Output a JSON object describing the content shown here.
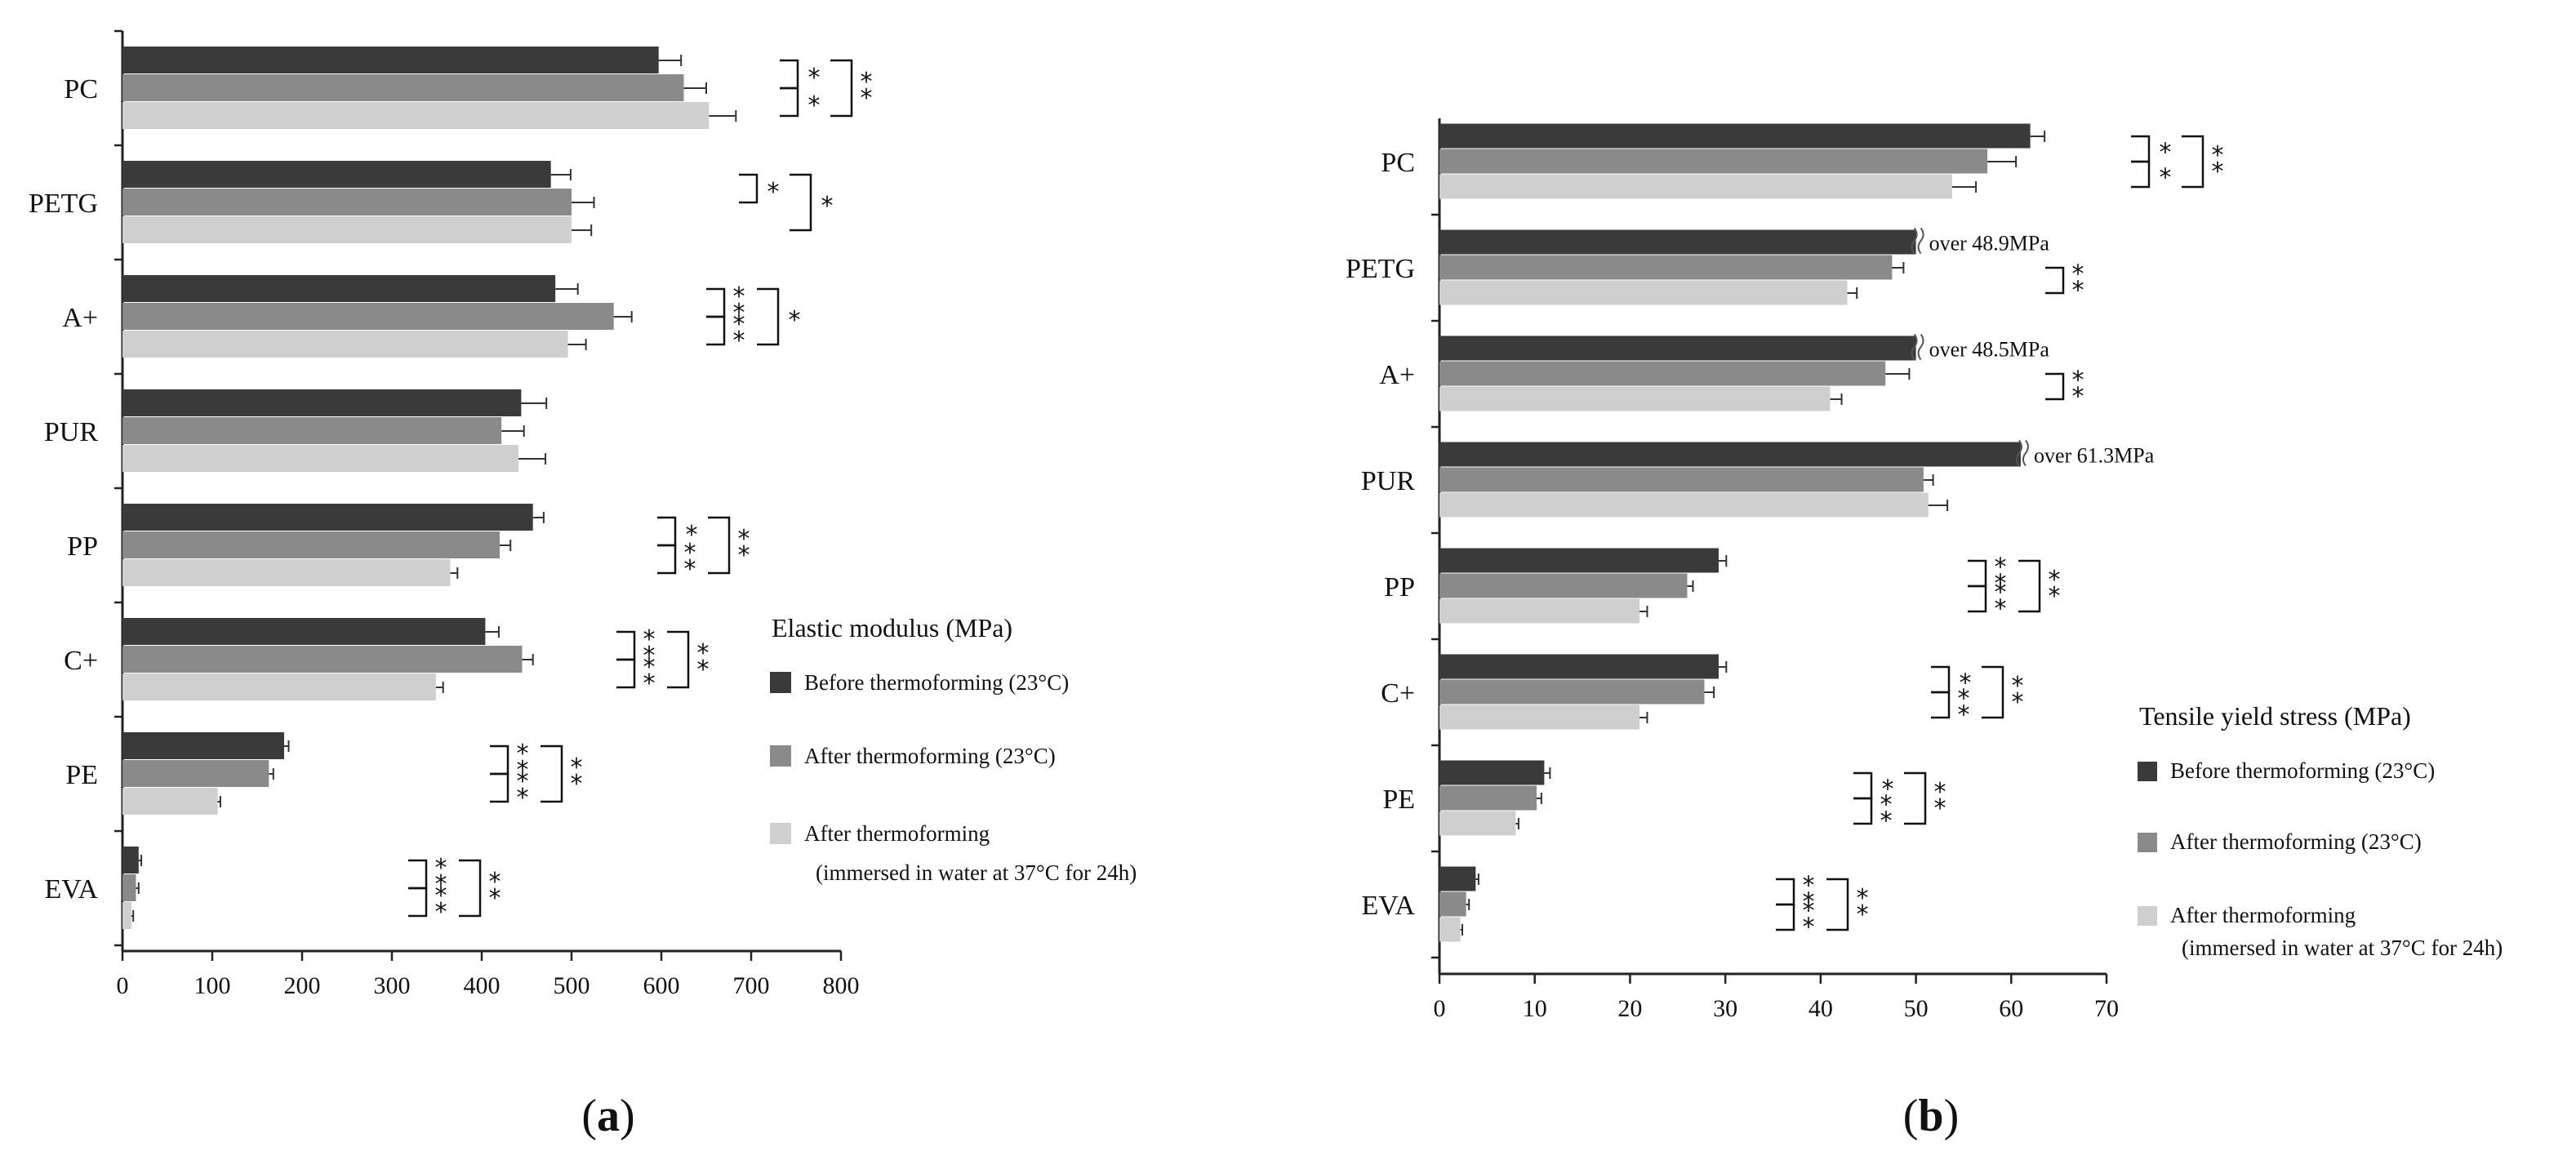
{
  "colors": {
    "before": "#3a3a3a",
    "after": "#8a8a8a",
    "water": "#cfcfcf",
    "axis": "#222222"
  },
  "legend_entries": [
    "Before thermoforming (23°C)",
    "After thermoforming (23°C)",
    "After thermoforming",
    "(immersed in water at 37°C for 24h)"
  ],
  "chart_data": [
    {
      "panel_label": "a",
      "type": "bar",
      "orientation": "horizontal",
      "legend_title": "Elastic modulus (MPa)",
      "categories": [
        "PC",
        "PETG",
        "A+",
        "PUR",
        "PP",
        "C+",
        "PE",
        "EVA"
      ],
      "xlim": [
        0,
        800
      ],
      "xticks": [
        "0",
        "100",
        "200",
        "300",
        "400",
        "500",
        "600",
        "700",
        "800"
      ],
      "series": [
        {
          "name": "Before thermoforming (23°C)",
          "values": [
            597,
            477,
            482,
            444,
            457,
            404,
            180,
            18
          ],
          "errors": [
            25,
            22,
            25,
            28,
            12,
            15,
            5,
            3
          ]
        },
        {
          "name": "After thermoforming (23°C)",
          "values": [
            625,
            500,
            547,
            422,
            420,
            445,
            163,
            15
          ],
          "errors": [
            25,
            25,
            20,
            25,
            12,
            12,
            5,
            3
          ]
        },
        {
          "name": "After thermoforming (immersed in water at 37°C for 24h)",
          "values": [
            653,
            500,
            496,
            441,
            365,
            349,
            106,
            10
          ],
          "errors": [
            30,
            22,
            20,
            30,
            8,
            8,
            3,
            2
          ]
        }
      ],
      "annotations": [],
      "significance": [
        {
          "category": "PC",
          "marks": [
            "*",
            "*",
            "**"
          ]
        },
        {
          "category": "PETG",
          "marks": [
            "*",
            "*"
          ]
        },
        {
          "category": "A+",
          "marks": [
            "**",
            "**",
            "*"
          ]
        },
        {
          "category": "PP",
          "marks": [
            "*",
            "**",
            "**"
          ]
        },
        {
          "category": "C+",
          "marks": [
            "**",
            "**",
            "**"
          ]
        },
        {
          "category": "PE",
          "marks": [
            "**",
            "**",
            "**"
          ]
        },
        {
          "category": "EVA",
          "marks": [
            "**",
            "**",
            "**"
          ]
        }
      ]
    },
    {
      "panel_label": "b",
      "type": "bar",
      "orientation": "horizontal",
      "legend_title": "Tensile yield stress (MPa)",
      "categories": [
        "PC",
        "PETG",
        "A+",
        "PUR",
        "PP",
        "C+",
        "PE",
        "EVA"
      ],
      "xlim": [
        0,
        70
      ],
      "xticks": [
        "0",
        "10",
        "20",
        "30",
        "40",
        "50",
        "60",
        "70"
      ],
      "series": [
        {
          "name": "Before thermoforming (23°C)",
          "values": [
            62,
            50,
            50,
            61,
            29.3,
            29.3,
            11,
            3.8
          ],
          "errors": [
            1.5,
            0,
            0,
            0,
            0.8,
            0.8,
            0.6,
            0.3
          ]
        },
        {
          "name": "After thermoforming (23°C)",
          "values": [
            57.5,
            47.5,
            46.8,
            50.8,
            26,
            27.8,
            10.2,
            2.8
          ],
          "errors": [
            3,
            1.2,
            2.5,
            1,
            0.6,
            1,
            0.5,
            0.3
          ]
        },
        {
          "name": "After thermoforming (immersed in water at 37°C for 24h)",
          "values": [
            53.8,
            42.8,
            41,
            51.3,
            21,
            21,
            8,
            2.2
          ],
          "errors": [
            2.5,
            1,
            1.2,
            2,
            0.8,
            0.8,
            0.3,
            0.2
          ]
        }
      ],
      "annotations": [
        {
          "category": "PETG",
          "text": "over 48.9MPa"
        },
        {
          "category": "A+",
          "text": "over 48.5MPa"
        },
        {
          "category": "PUR",
          "text": "over 61.3MPa"
        }
      ],
      "significance": [
        {
          "category": "PC",
          "marks": [
            "*",
            "*",
            "**"
          ]
        },
        {
          "category": "PETG",
          "marks": [
            "**"
          ]
        },
        {
          "category": "A+",
          "marks": [
            "**"
          ]
        },
        {
          "category": "PP",
          "marks": [
            "**",
            "**",
            "**"
          ]
        },
        {
          "category": "C+",
          "marks": [
            "*",
            "**",
            "**"
          ]
        },
        {
          "category": "PE",
          "marks": [
            "*",
            "**",
            "**"
          ]
        },
        {
          "category": "EVA",
          "marks": [
            "**",
            "**",
            "**"
          ]
        }
      ]
    }
  ]
}
